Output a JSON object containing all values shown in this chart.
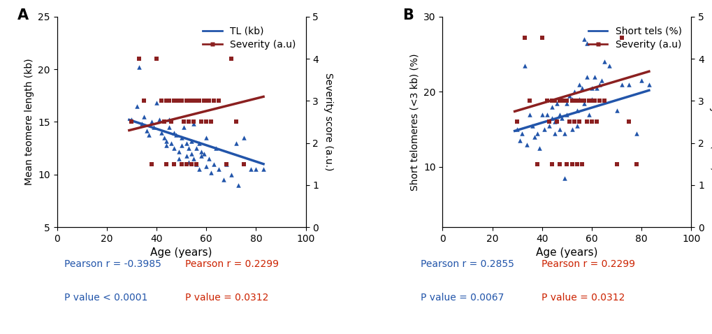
{
  "panel_A": {
    "title": "A",
    "ylabel_left": "Mean teomere length (kb)",
    "ylabel_right": "Severity score (a.u.)",
    "xlabel": "Age (years)",
    "xlim": [
      0,
      100
    ],
    "ylim_left": [
      5,
      25
    ],
    "ylim_right": [
      0,
      5
    ],
    "yticks_left": [
      5,
      10,
      15,
      20,
      25
    ],
    "yticks_right": [
      0,
      1,
      2,
      3,
      4,
      5
    ],
    "xticks": [
      0,
      20,
      40,
      60,
      80,
      100
    ],
    "tl_points": [
      [
        30,
        15.2
      ],
      [
        32,
        16.5
      ],
      [
        33,
        20.2
      ],
      [
        34,
        14.8
      ],
      [
        35,
        15.5
      ],
      [
        36,
        14.2
      ],
      [
        37,
        13.8
      ],
      [
        38,
        15.0
      ],
      [
        39,
        14.5
      ],
      [
        40,
        16.8
      ],
      [
        41,
        15.2
      ],
      [
        42,
        14.0
      ],
      [
        43,
        13.5
      ],
      [
        44,
        13.2
      ],
      [
        44,
        12.8
      ],
      [
        45,
        15.2
      ],
      [
        45,
        14.5
      ],
      [
        46,
        13.0
      ],
      [
        47,
        12.5
      ],
      [
        47,
        14.0
      ],
      [
        48,
        13.8
      ],
      [
        49,
        12.2
      ],
      [
        49,
        11.5
      ],
      [
        50,
        13.5
      ],
      [
        50,
        12.8
      ],
      [
        51,
        14.5
      ],
      [
        52,
        13.0
      ],
      [
        52,
        11.8
      ],
      [
        53,
        12.5
      ],
      [
        53,
        11.2
      ],
      [
        54,
        13.2
      ],
      [
        54,
        12.0
      ],
      [
        55,
        11.5
      ],
      [
        55,
        14.8
      ],
      [
        56,
        12.5
      ],
      [
        56,
        11.0
      ],
      [
        57,
        13.0
      ],
      [
        57,
        10.5
      ],
      [
        58,
        12.2
      ],
      [
        58,
        11.8
      ],
      [
        59,
        12.0
      ],
      [
        60,
        13.5
      ],
      [
        60,
        10.8
      ],
      [
        61,
        11.5
      ],
      [
        62,
        10.2
      ],
      [
        63,
        11.0
      ],
      [
        64,
        12.5
      ],
      [
        65,
        10.5
      ],
      [
        67,
        9.5
      ],
      [
        68,
        11.0
      ],
      [
        70,
        10.0
      ],
      [
        72,
        13.0
      ],
      [
        73,
        9.0
      ],
      [
        75,
        13.5
      ],
      [
        78,
        10.5
      ],
      [
        80,
        10.5
      ],
      [
        83,
        10.5
      ]
    ],
    "sev_points": [
      [
        30,
        2.5
      ],
      [
        33,
        4.0
      ],
      [
        35,
        3.0
      ],
      [
        38,
        1.5
      ],
      [
        40,
        4.0
      ],
      [
        42,
        3.0
      ],
      [
        43,
        2.5
      ],
      [
        44,
        3.0
      ],
      [
        44,
        1.5
      ],
      [
        45,
        3.0
      ],
      [
        46,
        2.5
      ],
      [
        47,
        3.0
      ],
      [
        47,
        1.5
      ],
      [
        48,
        3.0
      ],
      [
        49,
        3.0
      ],
      [
        50,
        3.0
      ],
      [
        50,
        1.5
      ],
      [
        51,
        2.5
      ],
      [
        52,
        3.0
      ],
      [
        52,
        1.5
      ],
      [
        53,
        3.0
      ],
      [
        53,
        2.5
      ],
      [
        54,
        3.0
      ],
      [
        54,
        1.5
      ],
      [
        55,
        3.0
      ],
      [
        55,
        2.5
      ],
      [
        56,
        3.0
      ],
      [
        56,
        1.5
      ],
      [
        57,
        3.0
      ],
      [
        58,
        2.5
      ],
      [
        59,
        3.0
      ],
      [
        60,
        3.0
      ],
      [
        60,
        2.5
      ],
      [
        61,
        3.0
      ],
      [
        62,
        2.5
      ],
      [
        63,
        3.0
      ],
      [
        65,
        3.0
      ],
      [
        68,
        1.5
      ],
      [
        70,
        4.0
      ],
      [
        72,
        2.5
      ],
      [
        75,
        1.5
      ]
    ],
    "tl_line": {
      "x0": 29,
      "x1": 83,
      "y0": 15.2,
      "y1": 11.0
    },
    "sev_line": {
      "x0": 29,
      "x1": 83,
      "y0": 2.3,
      "y1": 3.1
    },
    "pearson_tl": "Pearson r = -0.3985",
    "pvalue_tl": "P value < 0.0001",
    "pearson_sev": "Pearson r = 0.2299",
    "pvalue_sev": "P value = 0.0312",
    "legend_tl": "TL (kb)",
    "legend_sev": "Severity (a.u)"
  },
  "panel_B": {
    "title": "B",
    "ylabel_left": "Short telomeres (<3 kb) (%)",
    "ylabel_right": "Severity score (a.u.)",
    "xlabel": "Age (years)",
    "xlim": [
      0,
      100
    ],
    "ylim_left": [
      2,
      30
    ],
    "ylim_right": [
      0,
      5
    ],
    "yticks_left": [
      10,
      20,
      30
    ],
    "yticks_right": [
      0,
      1,
      2,
      3,
      4,
      5
    ],
    "xticks": [
      0,
      20,
      40,
      60,
      80,
      100
    ],
    "st_points": [
      [
        30,
        15.0
      ],
      [
        31,
        13.5
      ],
      [
        32,
        14.5
      ],
      [
        33,
        23.5
      ],
      [
        34,
        13.0
      ],
      [
        35,
        17.0
      ],
      [
        36,
        15.5
      ],
      [
        37,
        14.0
      ],
      [
        38,
        14.5
      ],
      [
        39,
        12.5
      ],
      [
        40,
        17.0
      ],
      [
        41,
        15.0
      ],
      [
        42,
        17.0
      ],
      [
        43,
        15.5
      ],
      [
        44,
        16.5
      ],
      [
        44,
        18.0
      ],
      [
        45,
        16.0
      ],
      [
        45,
        14.5
      ],
      [
        46,
        18.5
      ],
      [
        47,
        17.0
      ],
      [
        47,
        15.0
      ],
      [
        48,
        16.5
      ],
      [
        49,
        14.5
      ],
      [
        49,
        8.5
      ],
      [
        50,
        18.5
      ],
      [
        50,
        17.0
      ],
      [
        51,
        19.5
      ],
      [
        52,
        15.0
      ],
      [
        52,
        19.0
      ],
      [
        53,
        20.0
      ],
      [
        54,
        17.5
      ],
      [
        54,
        15.5
      ],
      [
        55,
        21.0
      ],
      [
        55,
        19.0
      ],
      [
        56,
        20.5
      ],
      [
        57,
        18.5
      ],
      [
        57,
        27.0
      ],
      [
        58,
        22.0
      ],
      [
        58,
        26.5
      ],
      [
        59,
        17.0
      ],
      [
        60,
        20.5
      ],
      [
        60,
        19.0
      ],
      [
        61,
        22.0
      ],
      [
        62,
        20.5
      ],
      [
        63,
        21.0
      ],
      [
        64,
        21.5
      ],
      [
        65,
        24.0
      ],
      [
        67,
        23.5
      ],
      [
        70,
        17.5
      ],
      [
        72,
        21.0
      ],
      [
        75,
        21.0
      ],
      [
        78,
        14.5
      ],
      [
        80,
        21.5
      ],
      [
        83,
        21.0
      ]
    ],
    "sev_points": [
      [
        30,
        2.5
      ],
      [
        33,
        4.5
      ],
      [
        35,
        3.0
      ],
      [
        38,
        1.5
      ],
      [
        40,
        4.5
      ],
      [
        42,
        3.0
      ],
      [
        43,
        2.5
      ],
      [
        44,
        3.0
      ],
      [
        44,
        1.5
      ],
      [
        45,
        3.0
      ],
      [
        46,
        2.5
      ],
      [
        47,
        3.0
      ],
      [
        47,
        1.5
      ],
      [
        48,
        3.0
      ],
      [
        49,
        3.0
      ],
      [
        50,
        3.0
      ],
      [
        50,
        1.5
      ],
      [
        51,
        2.5
      ],
      [
        52,
        3.0
      ],
      [
        52,
        1.5
      ],
      [
        53,
        3.0
      ],
      [
        53,
        2.5
      ],
      [
        54,
        3.0
      ],
      [
        54,
        1.5
      ],
      [
        55,
        3.0
      ],
      [
        55,
        2.5
      ],
      [
        56,
        3.0
      ],
      [
        56,
        1.5
      ],
      [
        57,
        3.0
      ],
      [
        58,
        2.5
      ],
      [
        59,
        3.0
      ],
      [
        60,
        3.0
      ],
      [
        60,
        2.5
      ],
      [
        61,
        3.0
      ],
      [
        62,
        2.5
      ],
      [
        63,
        3.0
      ],
      [
        65,
        3.0
      ],
      [
        70,
        1.5
      ],
      [
        72,
        4.5
      ],
      [
        75,
        2.5
      ],
      [
        78,
        1.5
      ]
    ],
    "st_line": {
      "x0": 29,
      "x1": 83,
      "y0": 14.8,
      "y1": 20.2
    },
    "sev_line": {
      "x0": 29,
      "x1": 83,
      "y0": 2.75,
      "y1": 3.7
    },
    "pearson_st": "Pearson r = 0.2855",
    "pvalue_st": "P value = 0.0067",
    "pearson_sev": "Pearson r = 0.2299",
    "pvalue_sev": "P value = 0.0312",
    "legend_st": "Short tels (%)",
    "legend_sev": "Severity (a.u)"
  },
  "blue_color": "#2255aa",
  "red_color": "#8B2020",
  "blue_text": "#2255aa",
  "red_text": "#cc2200"
}
